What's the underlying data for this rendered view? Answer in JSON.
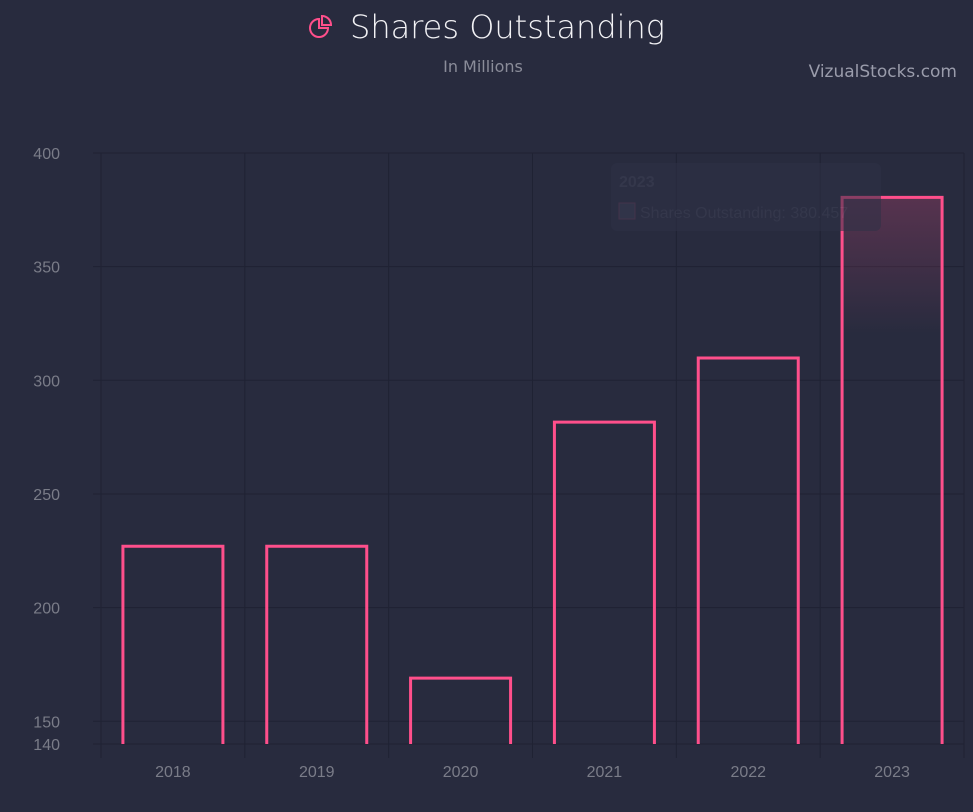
{
  "header": {
    "title": "Shares Outstanding",
    "subtitle": "In Millions",
    "brand": "VizualStocks.com",
    "icon": "pie-chart-icon"
  },
  "colors": {
    "accent": "#ff4f8b",
    "background": "#282b3e",
    "grid": "#1f2233"
  },
  "tooltip": {
    "title": "2023",
    "label": "Shares Outstanding: 380.457"
  },
  "chart_data": {
    "type": "bar",
    "title": "Shares Outstanding",
    "subtitle": "In Millions",
    "categories": [
      "2018",
      "2019",
      "2020",
      "2021",
      "2022",
      "2023"
    ],
    "series": [
      {
        "name": "Shares Outstanding",
        "values": [
          227,
          227,
          169,
          281.6,
          309.8,
          380.457
        ]
      }
    ],
    "ylim": [
      140,
      400
    ],
    "yticks": [
      140,
      150,
      200,
      250,
      300,
      350,
      400
    ],
    "grid": true,
    "highlighted": "2023"
  }
}
